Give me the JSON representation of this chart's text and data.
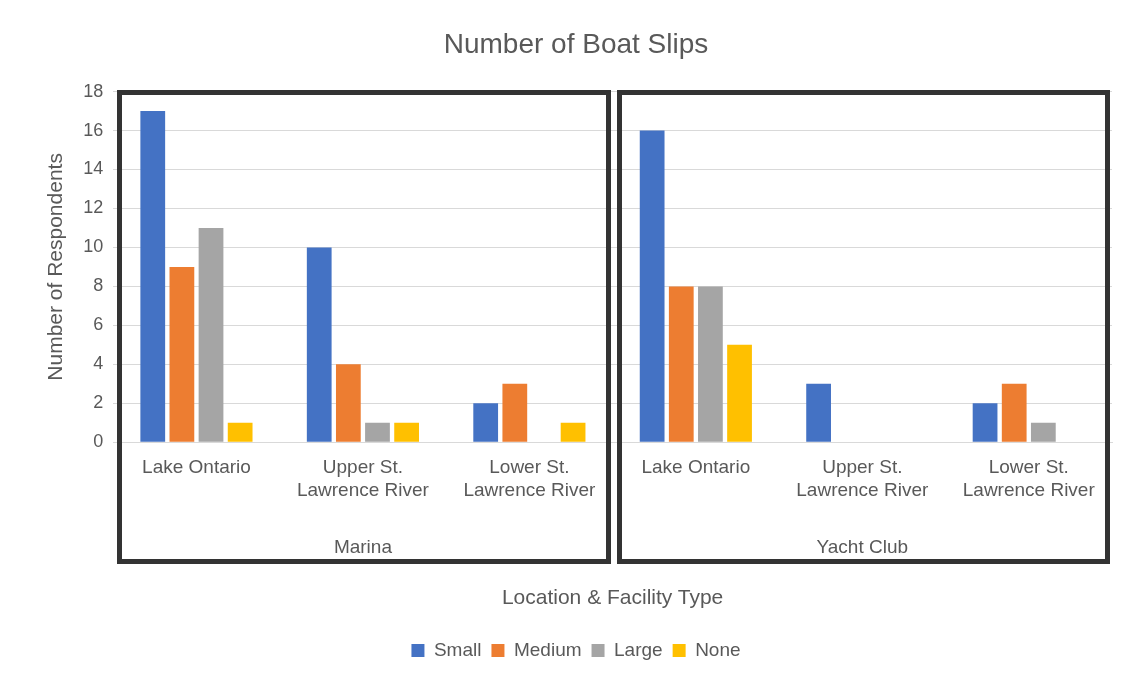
{
  "chart_data": {
    "type": "bar",
    "title": "Number of Boat Slips",
    "xlabel": "Location & Facility Type",
    "ylabel": "Number of Respondents",
    "categories": [
      "Lake Ontario",
      "Upper St. Lawrence River",
      "Lower St. Lawrence River",
      "Lake Ontario",
      "Upper St. Lawrence River",
      "Lower St. Lawrence River"
    ],
    "annotations": [
      "Marina",
      "Yacht Club"
    ],
    "series": [
      {
        "name": "Small",
        "color": "#4472c4",
        "values": [
          17,
          10,
          2,
          16,
          3,
          2
        ]
      },
      {
        "name": "Medium",
        "color": "#ed7d31",
        "values": [
          9,
          4,
          3,
          8,
          0,
          3
        ]
      },
      {
        "name": "Large",
        "color": "#a5a5a5",
        "values": [
          11,
          1,
          0,
          8,
          0,
          1
        ]
      },
      {
        "name": "None",
        "color": "#ffc000",
        "values": [
          1,
          1,
          1,
          5,
          0,
          0
        ]
      }
    ],
    "ylim": [
      0,
      18
    ],
    "yticks": [
      0,
      2,
      4,
      6,
      8,
      10,
      12,
      14,
      16,
      18
    ],
    "grid": "y",
    "legend": "bottom"
  }
}
